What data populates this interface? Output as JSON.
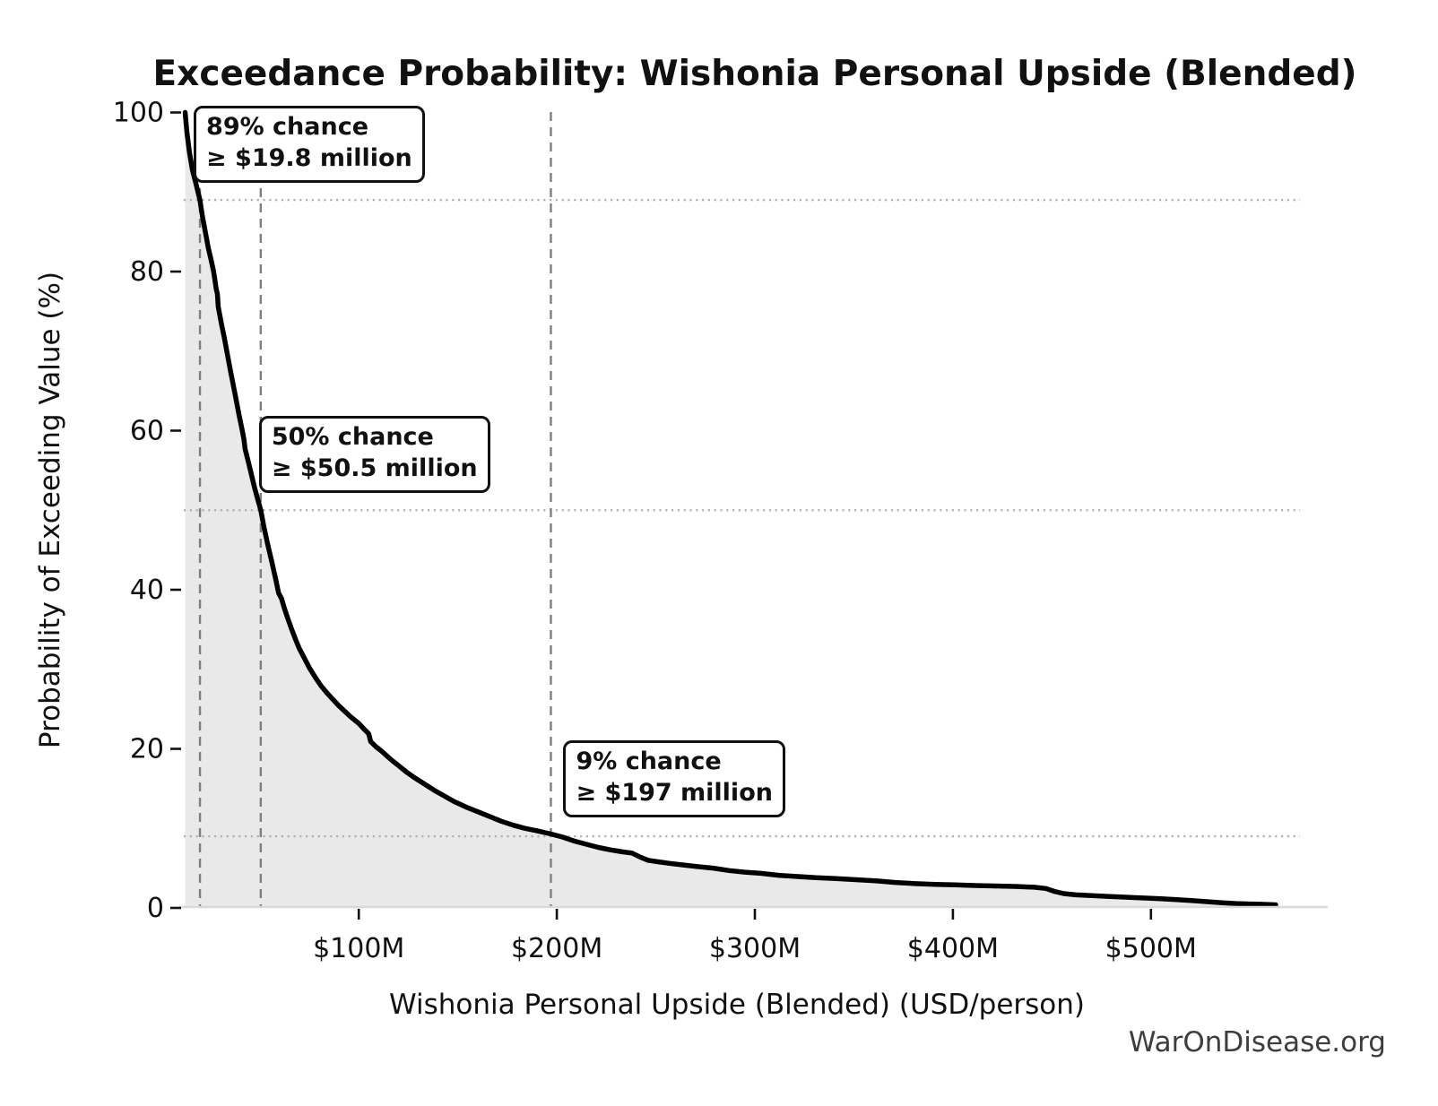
{
  "title": "Exceedance Probability: Wishonia Personal Upside (Blended)",
  "watermark": "WarOnDisease.org",
  "colors": {
    "curve": "#000000",
    "area_fill": "#e9e9e9",
    "dashed_marker_line": "#7f7f7f",
    "dotted_marker_line": "#b0b0b0",
    "baseline": "#d9d9d9",
    "tick": "#111111",
    "watermark_text": "#3d3d3d",
    "annotation_border": "#111111",
    "annotation_bg": "#ffffff"
  },
  "chart_data": {
    "type": "line",
    "title": "Exceedance Probability: Wishonia Personal Upside (Blended)",
    "xlabel": "Wishonia Personal Upside (Blended) (USD/person)",
    "ylabel": "Probability of Exceeding Value (%)",
    "x_unit": "USD millions per person",
    "y_unit": "percent",
    "xlim": [
      9,
      575
    ],
    "ylim": [
      0,
      100
    ],
    "grid": "off (dotted/dashed reference lines only)",
    "legend": "none",
    "x_ticks": [
      {
        "value": 100,
        "label": "$100M"
      },
      {
        "value": 200,
        "label": "$200M"
      },
      {
        "value": 300,
        "label": "$300M"
      },
      {
        "value": 400,
        "label": "$400M"
      },
      {
        "value": 500,
        "label": "$500M"
      }
    ],
    "y_ticks": [
      {
        "value": 0,
        "label": "0"
      },
      {
        "value": 20,
        "label": "20"
      },
      {
        "value": 40,
        "label": "40"
      },
      {
        "value": 60,
        "label": "60"
      },
      {
        "value": 80,
        "label": "80"
      },
      {
        "value": 100,
        "label": "100"
      }
    ],
    "reference_lines": [
      {
        "prob_pct": 89,
        "value_musd": 19.8
      },
      {
        "prob_pct": 50,
        "value_musd": 50.5
      },
      {
        "prob_pct": 9,
        "value_musd": 197
      }
    ],
    "annotations": [
      {
        "line1": "89% chance",
        "line2": "≥ $19.8 million",
        "prob_pct": 89,
        "value_musd": 19.8
      },
      {
        "line1": "50% chance",
        "line2": "≥ $50.5 million",
        "prob_pct": 50,
        "value_musd": 50.5
      },
      {
        "line1": "9% chance",
        "line2": "≥ $197 million",
        "prob_pct": 9,
        "value_musd": 197
      }
    ],
    "series": [
      {
        "name": "Exceedance probability (1 - CDF)",
        "points_musd_pct": [
          [
            12.3,
            100
          ],
          [
            13.2,
            97.5
          ],
          [
            14.5,
            95
          ],
          [
            16,
            92.8
          ],
          [
            18,
            90.8
          ],
          [
            19.8,
            89
          ],
          [
            21,
            87
          ],
          [
            22.5,
            85
          ],
          [
            24,
            83
          ],
          [
            25.5,
            81.4
          ],
          [
            26.7,
            80
          ],
          [
            28,
            77.8
          ],
          [
            28.6,
            77.2
          ],
          [
            29,
            75.6
          ],
          [
            30.5,
            73.6
          ],
          [
            32,
            71.8
          ],
          [
            33.5,
            69.8
          ],
          [
            35,
            67.8
          ],
          [
            36.5,
            65.9
          ],
          [
            38,
            64
          ],
          [
            39.5,
            62
          ],
          [
            41,
            60.2
          ],
          [
            42,
            58.9
          ],
          [
            42.6,
            57.7
          ],
          [
            44,
            56.3
          ],
          [
            45.5,
            54.8
          ],
          [
            47,
            53.2
          ],
          [
            48.7,
            51.6
          ],
          [
            50.5,
            50
          ],
          [
            52,
            48
          ],
          [
            54,
            45.7
          ],
          [
            56,
            43.6
          ],
          [
            58,
            41.4
          ],
          [
            59.5,
            39.6
          ],
          [
            61,
            38.9
          ],
          [
            62.5,
            37.6
          ],
          [
            64,
            36.5
          ],
          [
            66,
            35.1
          ],
          [
            68,
            33.8
          ],
          [
            70,
            32.6
          ],
          [
            72.5,
            31.4
          ],
          [
            75,
            30.2
          ],
          [
            78,
            29
          ],
          [
            81,
            27.9
          ],
          [
            84,
            27
          ],
          [
            87,
            26.2
          ],
          [
            90,
            25.4
          ],
          [
            93,
            24.7
          ],
          [
            96,
            24
          ],
          [
            100,
            23.2
          ],
          [
            103,
            22.4
          ],
          [
            105,
            21.9
          ],
          [
            106,
            20.9
          ],
          [
            109,
            20.2
          ],
          [
            112,
            19.6
          ],
          [
            116,
            18.7
          ],
          [
            120,
            17.9
          ],
          [
            124,
            17.1
          ],
          [
            128,
            16.4
          ],
          [
            133,
            15.6
          ],
          [
            138,
            14.8
          ],
          [
            143,
            14.1
          ],
          [
            148,
            13.4
          ],
          [
            154,
            12.7
          ],
          [
            160,
            12.1
          ],
          [
            166,
            11.5
          ],
          [
            172,
            10.9
          ],
          [
            178,
            10.4
          ],
          [
            184,
            10
          ],
          [
            190,
            9.7
          ],
          [
            197,
            9.3
          ],
          [
            203,
            8.9
          ],
          [
            209,
            8.4
          ],
          [
            215,
            8
          ],
          [
            221,
            7.6
          ],
          [
            227,
            7.3
          ],
          [
            233,
            7.05
          ],
          [
            238,
            6.9
          ],
          [
            242,
            6.4
          ],
          [
            246,
            6
          ],
          [
            251,
            5.8
          ],
          [
            257,
            5.6
          ],
          [
            264,
            5.4
          ],
          [
            271,
            5.2
          ],
          [
            279,
            5
          ],
          [
            287,
            4.7
          ],
          [
            295,
            4.5
          ],
          [
            303,
            4.35
          ],
          [
            312,
            4.1
          ],
          [
            321,
            3.95
          ],
          [
            331,
            3.8
          ],
          [
            341,
            3.7
          ],
          [
            351,
            3.55
          ],
          [
            361,
            3.4
          ],
          [
            371,
            3.2
          ],
          [
            381,
            3.05
          ],
          [
            391,
            2.95
          ],
          [
            401,
            2.9
          ],
          [
            411,
            2.82
          ],
          [
            421,
            2.76
          ],
          [
            431,
            2.7
          ],
          [
            441,
            2.6
          ],
          [
            447,
            2.45
          ],
          [
            451,
            2.1
          ],
          [
            456,
            1.8
          ],
          [
            462,
            1.65
          ],
          [
            470,
            1.55
          ],
          [
            478,
            1.45
          ],
          [
            487,
            1.35
          ],
          [
            496,
            1.25
          ],
          [
            505,
            1.15
          ],
          [
            514,
            1.02
          ],
          [
            522,
            0.9
          ],
          [
            529,
            0.78
          ],
          [
            536,
            0.65
          ],
          [
            543,
            0.55
          ],
          [
            550,
            0.5
          ],
          [
            557,
            0.45
          ],
          [
            563,
            0.4
          ]
        ]
      }
    ]
  }
}
